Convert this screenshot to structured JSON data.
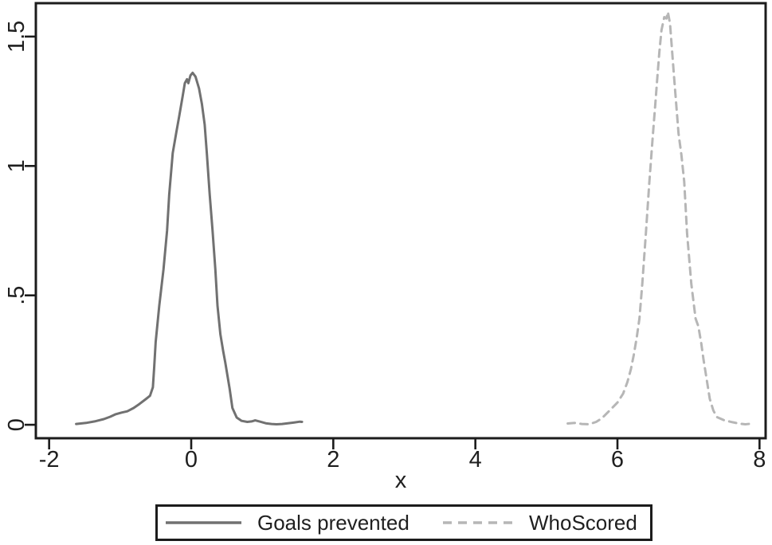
{
  "figure": {
    "background": "#ffffff",
    "axis_color": "#1c1c1c",
    "text_color": "#1f1f1f"
  },
  "chart_data": {
    "type": "line",
    "title": "",
    "xlabel": "x",
    "ylabel": "",
    "grid": false,
    "frame": "full-box",
    "xlim": [
      -2.187,
      8.086
    ],
    "ylim": [
      -0.052,
      1.629
    ],
    "x_ticks": {
      "values": [
        -2,
        0,
        2,
        4,
        6,
        8
      ],
      "labels": [
        "-2",
        "0",
        "2",
        "4",
        "6",
        "8"
      ]
    },
    "y_ticks": {
      "values": [
        0,
        0.5,
        1,
        1.5
      ],
      "labels": [
        "0",
        ".5",
        "1",
        "1.5"
      ]
    },
    "legend": {
      "position": "bottom-center",
      "bordered": true
    },
    "series": [
      {
        "name": "Goals prevented",
        "style": "solid",
        "color": "#717171",
        "peak": {
          "x": 0.0,
          "y": 1.36
        },
        "points": [
          [
            -1.62,
            0.003
          ],
          [
            -1.48,
            0.007
          ],
          [
            -1.36,
            0.013
          ],
          [
            -1.23,
            0.022
          ],
          [
            -1.14,
            0.031
          ],
          [
            -1.07,
            0.04
          ],
          [
            -0.98,
            0.047
          ],
          [
            -0.9,
            0.052
          ],
          [
            -0.81,
            0.065
          ],
          [
            -0.73,
            0.08
          ],
          [
            -0.64,
            0.099
          ],
          [
            -0.58,
            0.112
          ],
          [
            -0.54,
            0.145
          ],
          [
            -0.52,
            0.225
          ],
          [
            -0.5,
            0.32
          ],
          [
            -0.45,
            0.46
          ],
          [
            -0.39,
            0.6
          ],
          [
            -0.34,
            0.75
          ],
          [
            -0.31,
            0.89
          ],
          [
            -0.26,
            1.05
          ],
          [
            -0.21,
            1.13
          ],
          [
            -0.17,
            1.19
          ],
          [
            -0.12,
            1.27
          ],
          [
            -0.09,
            1.32
          ],
          [
            -0.06,
            1.335
          ],
          [
            -0.04,
            1.32
          ],
          [
            -0.01,
            1.35
          ],
          [
            0.02,
            1.36
          ],
          [
            0.06,
            1.345
          ],
          [
            0.11,
            1.3
          ],
          [
            0.15,
            1.24
          ],
          [
            0.19,
            1.16
          ],
          [
            0.22,
            1.05
          ],
          [
            0.26,
            0.89
          ],
          [
            0.3,
            0.75
          ],
          [
            0.34,
            0.6
          ],
          [
            0.37,
            0.46
          ],
          [
            0.41,
            0.35
          ],
          [
            0.45,
            0.285
          ],
          [
            0.48,
            0.24
          ],
          [
            0.54,
            0.14
          ],
          [
            0.58,
            0.065
          ],
          [
            0.64,
            0.028
          ],
          [
            0.71,
            0.015
          ],
          [
            0.79,
            0.011
          ],
          [
            0.85,
            0.013
          ],
          [
            0.9,
            0.017
          ],
          [
            0.97,
            0.012
          ],
          [
            1.05,
            0.006
          ],
          [
            1.13,
            0.003
          ],
          [
            1.2,
            0.002
          ],
          [
            1.28,
            0.003
          ],
          [
            1.36,
            0.006
          ],
          [
            1.45,
            0.009
          ],
          [
            1.53,
            0.012
          ],
          [
            1.56,
            0.011
          ]
        ]
      },
      {
        "name": "WhoScored",
        "style": "dashed",
        "color": "#b6b6b6",
        "peak": {
          "x": 6.71,
          "y": 1.6
        },
        "points": [
          [
            5.3,
            0.005
          ],
          [
            5.4,
            0.007
          ],
          [
            5.5,
            0.003
          ],
          [
            5.6,
            0.002
          ],
          [
            5.7,
            0.011
          ],
          [
            5.78,
            0.025
          ],
          [
            5.89,
            0.055
          ],
          [
            6.0,
            0.086
          ],
          [
            6.08,
            0.12
          ],
          [
            6.14,
            0.165
          ],
          [
            6.19,
            0.215
          ],
          [
            6.23,
            0.27
          ],
          [
            6.27,
            0.335
          ],
          [
            6.31,
            0.41
          ],
          [
            6.35,
            0.545
          ],
          [
            6.4,
            0.74
          ],
          [
            6.45,
            0.94
          ],
          [
            6.5,
            1.125
          ],
          [
            6.53,
            1.23
          ],
          [
            6.56,
            1.335
          ],
          [
            6.59,
            1.44
          ],
          [
            6.62,
            1.525
          ],
          [
            6.66,
            1.575
          ],
          [
            6.69,
            1.57
          ],
          [
            6.71,
            1.595
          ],
          [
            6.74,
            1.55
          ],
          [
            6.77,
            1.44
          ],
          [
            6.8,
            1.335
          ],
          [
            6.83,
            1.23
          ],
          [
            6.86,
            1.125
          ],
          [
            6.9,
            1.045
          ],
          [
            6.94,
            0.94
          ],
          [
            6.98,
            0.74
          ],
          [
            7.04,
            0.545
          ],
          [
            7.1,
            0.41
          ],
          [
            7.14,
            0.38
          ],
          [
            7.18,
            0.315
          ],
          [
            7.21,
            0.255
          ],
          [
            7.26,
            0.17
          ],
          [
            7.3,
            0.1
          ],
          [
            7.35,
            0.055
          ],
          [
            7.4,
            0.03
          ],
          [
            7.5,
            0.018
          ],
          [
            7.62,
            0.01
          ],
          [
            7.72,
            0.004
          ],
          [
            7.8,
            0.002
          ],
          [
            7.88,
            0.004
          ]
        ]
      }
    ]
  }
}
